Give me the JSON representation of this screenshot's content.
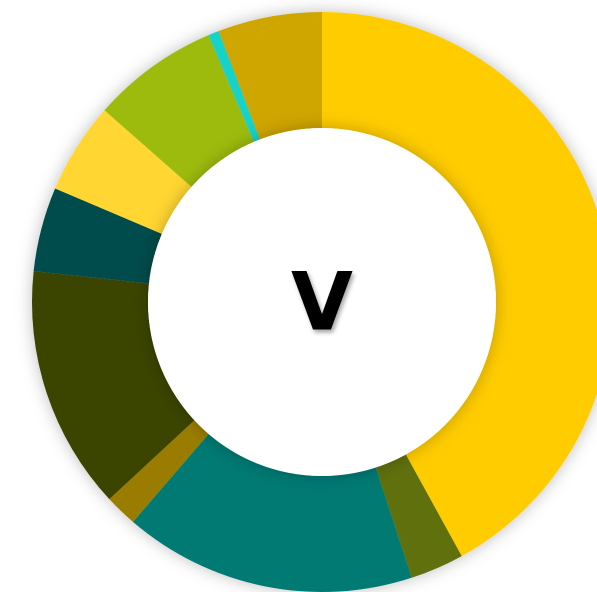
{
  "chart_data": {
    "type": "donut",
    "title": "V",
    "values": [
      42,
      3,
      16.3,
      1.8,
      13.6,
      4.7,
      5.1,
      7.1,
      0.6,
      5.8
    ],
    "colors": [
      "#ffcc00",
      "#5f7009",
      "#007a73",
      "#9a7d00",
      "#3a4405",
      "#004b4b",
      "#ffd633",
      "#9cbb0e",
      "#19d2c8",
      "#cfa500"
    ]
  }
}
